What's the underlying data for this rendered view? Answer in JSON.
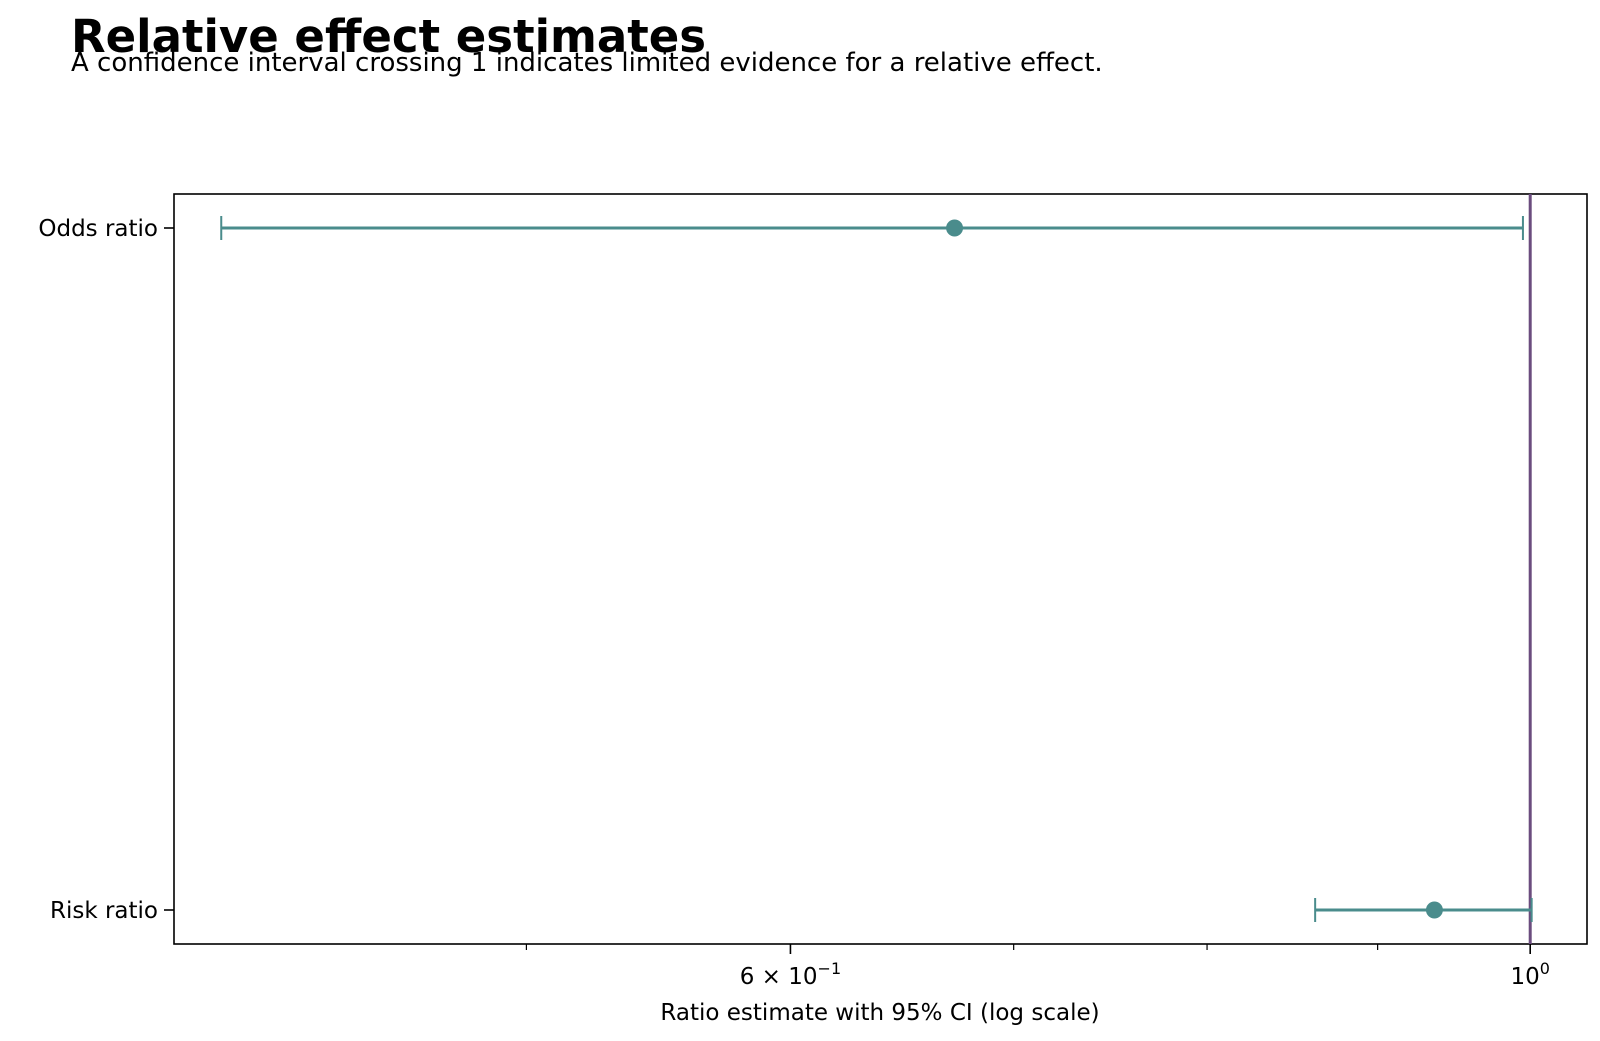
{
  "chart_data": {
    "type": "scatter",
    "title": "Relative effect estimates",
    "subtitle": "A confidence interval crossing 1 indicates limited evidence for a relative effect.",
    "xlabel": "Ratio estimate with 95% CI (log scale)",
    "ylabel": "",
    "x_scale": "log",
    "xlim": [
      0.392,
      1.04
    ],
    "grid": false,
    "reference_line": {
      "x": 1.0,
      "color": "#6b4c7e"
    },
    "xticks": [
      {
        "value": 0.6,
        "label_base": "6 × 10",
        "label_exp": "−1"
      },
      {
        "value": 1.0,
        "label_base": "10",
        "label_exp": "0"
      }
    ],
    "minor_xticks": [
      0.5,
      0.7,
      0.8,
      0.9
    ],
    "categories": [
      "Odds ratio",
      "Risk ratio"
    ],
    "series": [
      {
        "color": "#4a8c8c",
        "points": [
          {
            "category": "Odds ratio",
            "estimate": 0.672,
            "ci_low": 0.405,
            "ci_high": 0.995
          },
          {
            "category": "Risk ratio",
            "estimate": 0.936,
            "ci_low": 0.862,
            "ci_high": 1.001
          }
        ]
      }
    ]
  }
}
